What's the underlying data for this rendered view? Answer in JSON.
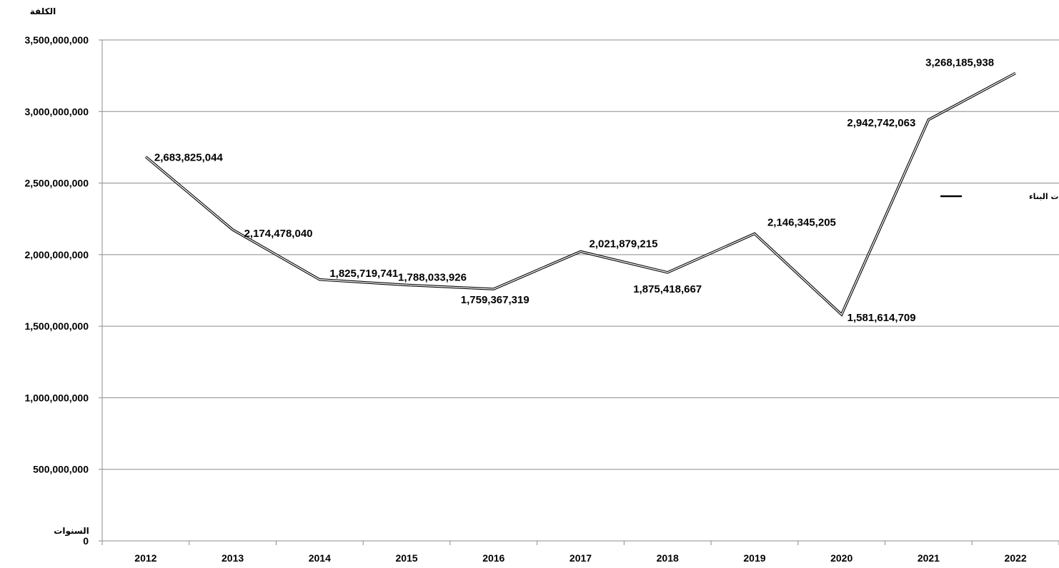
{
  "chart_data": {
    "type": "line",
    "title": "",
    "ylabel": "الكلفة",
    "xlabel": "السنوات",
    "categories": [
      "2012",
      "2013",
      "2014",
      "2015",
      "2016",
      "2017",
      "2018",
      "2019",
      "2020",
      "2021",
      "2022"
    ],
    "series": [
      {
        "name": "كلفة اجازات البناء",
        "values": [
          2683825044,
          2174478040,
          1825719741,
          1788033926,
          1759367319,
          2021879215,
          1875418667,
          2146345205,
          1581614709,
          2942742063,
          3268185938
        ],
        "data_labels": [
          "2,683,825,044",
          "2,174,478,040",
          "1,825,719,741",
          "1,788,033,926",
          "1,759,367,319",
          "2,021,879,215",
          "1,875,418,667",
          "2,146,345,205",
          "1,581,614,709",
          "2,942,742,063",
          "3,268,185,938"
        ]
      }
    ],
    "ylim": [
      0,
      3500000000
    ],
    "y_ticks": [
      0,
      500000000,
      1000000000,
      1500000000,
      2000000000,
      2500000000,
      3000000000,
      3500000000
    ],
    "y_tick_labels": [
      "0",
      "500,000,000",
      "1,000,000,000",
      "1,500,000,000",
      "2,000,000,000",
      "2,500,000,000",
      "3,000,000,000",
      "3,500,000,000"
    ],
    "grid": true,
    "legend_position": "right",
    "line_color": "#000000"
  }
}
